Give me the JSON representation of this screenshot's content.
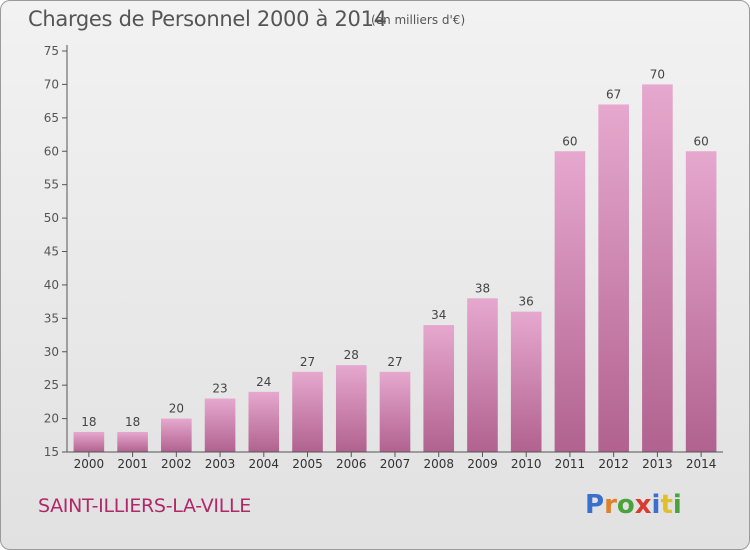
{
  "title": "Charges de Personnel 2000 à 2014",
  "subtitle": "(en milliers d'€)",
  "place": "SAINT-ILLIERS-LA-VILLE",
  "logo": {
    "text": "Proxiti",
    "letter_colors": [
      "#3a6fcf",
      "#e0802a",
      "#4aa23c",
      "#d83b2f",
      "#3a6fcf",
      "#e0c02a",
      "#4aa23c"
    ]
  },
  "colors": {
    "bar_top": "#e6a8ce",
    "bar_bottom": "#b1628f",
    "axis": "#555555",
    "grid": "#cccccc",
    "title": "#555555",
    "place": "#b0286a"
  },
  "chart_data": {
    "type": "bar",
    "categories": [
      "2000",
      "2001",
      "2002",
      "2003",
      "2004",
      "2005",
      "2006",
      "2007",
      "2008",
      "2009",
      "2010",
      "2011",
      "2012",
      "2013",
      "2014"
    ],
    "values": [
      18,
      18,
      20,
      23,
      24,
      27,
      28,
      27,
      34,
      38,
      36,
      60,
      67,
      70,
      60
    ],
    "ylim": [
      15,
      75
    ],
    "yticks": [
      15,
      20,
      25,
      30,
      35,
      40,
      45,
      50,
      55,
      60,
      65,
      70,
      75
    ],
    "grid": false,
    "data_labels": true
  }
}
